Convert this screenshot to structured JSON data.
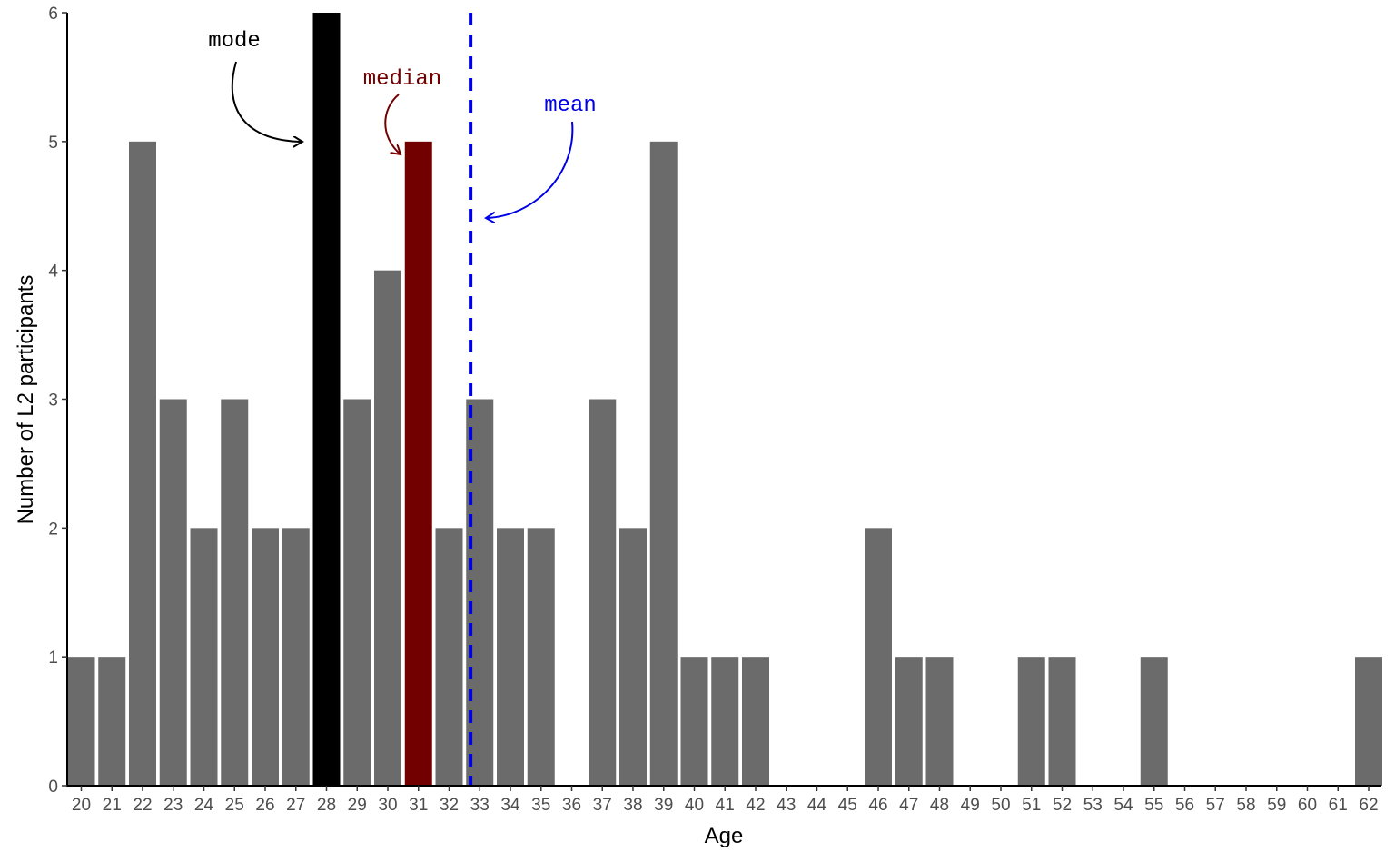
{
  "chart_data": {
    "type": "bar",
    "xlabel": "Age",
    "ylabel": "Number of L2 participants",
    "ylim": [
      0,
      6
    ],
    "yticks": [
      "0",
      "1",
      "2",
      "3",
      "4",
      "5",
      "6"
    ],
    "grid": false,
    "categories": [
      "20",
      "21",
      "22",
      "23",
      "24",
      "25",
      "26",
      "27",
      "28",
      "29",
      "30",
      "31",
      "32",
      "33",
      "34",
      "35",
      "36",
      "37",
      "38",
      "39",
      "40",
      "41",
      "42",
      "43",
      "44",
      "45",
      "46",
      "47",
      "48",
      "49",
      "50",
      "51",
      "52",
      "53",
      "54",
      "55",
      "56",
      "57",
      "58",
      "59",
      "60",
      "61",
      "62"
    ],
    "values": [
      1,
      1,
      5,
      3,
      2,
      3,
      2,
      2,
      6,
      3,
      4,
      5,
      2,
      3,
      2,
      2,
      0,
      3,
      2,
      5,
      1,
      1,
      1,
      0,
      0,
      0,
      2,
      1,
      1,
      0,
      0,
      1,
      1,
      0,
      0,
      1,
      0,
      0,
      0,
      0,
      0,
      0,
      1
    ],
    "highlights": {
      "mode": {
        "category": "28",
        "color": "#000000"
      },
      "median": {
        "category": "31",
        "color": "#730000"
      }
    },
    "mean_line": {
      "value": 32.7,
      "color": "#0000e6",
      "style": "dashed"
    },
    "bar_color": "#6b6b6b",
    "annotations": [
      {
        "text": "mode",
        "color": "#000000"
      },
      {
        "text": "median",
        "color": "#730000"
      },
      {
        "text": "mean",
        "color": "#0000e6"
      }
    ]
  }
}
